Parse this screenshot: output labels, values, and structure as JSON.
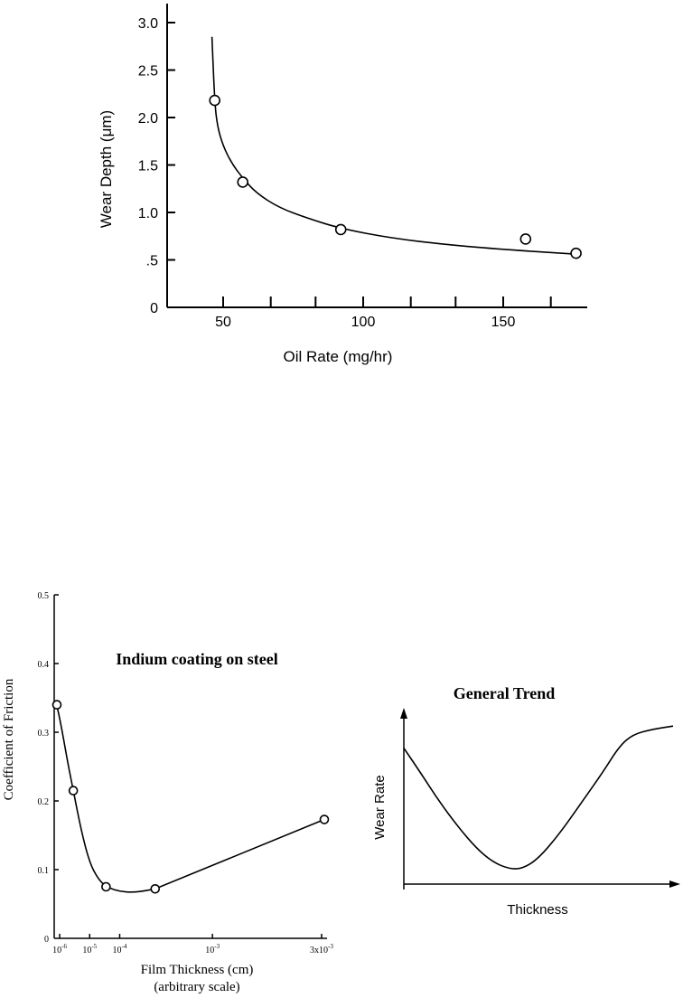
{
  "chart_data": [
    {
      "type": "scatter",
      "xlabel": "Oil Rate (mg/hr)",
      "ylabel": "Wear Depth (μm)",
      "xlim": [
        30,
        180
      ],
      "ylim": [
        0,
        3.2
      ],
      "x_ticks": [
        50,
        100,
        150
      ],
      "x_tick_labels": [
        "50",
        "100",
        "150"
      ],
      "x_minor_ticks": [
        67,
        83,
        117,
        133,
        167
      ],
      "y_ticks": [
        0,
        0.5,
        1.0,
        1.5,
        2.0,
        2.5,
        3.0
      ],
      "y_tick_labels": [
        "0",
        ".5",
        "1.0",
        "1.5",
        "2.0",
        "2.5",
        "3.0"
      ],
      "grid": false,
      "series": [
        {
          "points": [
            {
              "x": 47,
              "y": 2.18
            },
            {
              "x": 57,
              "y": 1.32
            },
            {
              "x": 92,
              "y": 0.82
            },
            {
              "x": 158,
              "y": 0.72
            },
            {
              "x": 176,
              "y": 0.57
            }
          ],
          "fit_curve": [
            [
              46,
              2.85
            ],
            [
              47,
              2.15
            ],
            [
              48,
              1.9
            ],
            [
              50,
              1.7
            ],
            [
              53,
              1.52
            ],
            [
              57,
              1.36
            ],
            [
              62,
              1.2
            ],
            [
              70,
              1.05
            ],
            [
              80,
              0.94
            ],
            [
              92,
              0.83
            ],
            [
              110,
              0.73
            ],
            [
              130,
              0.66
            ],
            [
              150,
              0.61
            ],
            [
              176,
              0.56
            ]
          ]
        }
      ]
    },
    {
      "type": "line",
      "title": "Indium coating on steel",
      "xlabel": "Film Thickness (cm)",
      "xlabel_note": "(arbitrary scale)",
      "ylabel": "Coefficient of Friction",
      "xlim": [
        0,
        10
      ],
      "ylim": [
        0,
        0.5
      ],
      "x_ticks": [
        0.2,
        1.3,
        2.4,
        5.8,
        9.8
      ],
      "x_tick_labels": [
        {
          "base": "10",
          "exp": "-6"
        },
        {
          "base": "10",
          "exp": "-5"
        },
        {
          "base": "10",
          "exp": "-4"
        },
        {
          "base": "10",
          "exp": "-3"
        },
        {
          "base": "3x10",
          "exp": "-3"
        }
      ],
      "y_ticks": [
        0,
        0.1,
        0.2,
        0.3,
        0.4,
        0.5
      ],
      "y_tick_labels": [
        "0",
        "0.1",
        "0.2",
        "0.3",
        "0.4",
        "0.5"
      ],
      "grid": false,
      "series": [
        {
          "points": [
            {
              "x": 0.1,
              "y": 0.34
            },
            {
              "x": 0.7,
              "y": 0.215
            },
            {
              "x": 1.9,
              "y": 0.075
            },
            {
              "x": 3.7,
              "y": 0.072
            },
            {
              "x": 9.9,
              "y": 0.173
            }
          ],
          "fit_curve": [
            [
              0.0,
              0.345
            ],
            [
              0.1,
              0.34
            ],
            [
              0.3,
              0.3
            ],
            [
              0.5,
              0.255
            ],
            [
              0.7,
              0.215
            ],
            [
              1.0,
              0.155
            ],
            [
              1.3,
              0.11
            ],
            [
              1.6,
              0.087
            ],
            [
              1.9,
              0.075
            ],
            [
              2.4,
              0.068
            ],
            [
              2.9,
              0.067
            ],
            [
              3.3,
              0.069
            ],
            [
              3.7,
              0.072
            ],
            [
              9.9,
              0.173
            ]
          ]
        }
      ]
    },
    {
      "type": "line",
      "title": "General Trend",
      "xlabel": "Thickness",
      "ylabel": "Wear Rate",
      "xlim": [
        0,
        10
      ],
      "ylim": [
        0,
        10
      ],
      "grid": false,
      "series": [
        {
          "values_qualitative": [
            [
              0.0,
              8.0
            ],
            [
              0.6,
              6.6
            ],
            [
              1.3,
              4.9
            ],
            [
              2.0,
              3.4
            ],
            [
              2.7,
              2.1
            ],
            [
              3.3,
              1.3
            ],
            [
              3.9,
              0.9
            ],
            [
              4.4,
              0.9
            ],
            [
              5.0,
              1.5
            ],
            [
              5.8,
              3.0
            ],
            [
              6.6,
              4.8
            ],
            [
              7.4,
              6.6
            ],
            [
              8.0,
              8.1
            ],
            [
              8.5,
              8.8
            ],
            [
              9.2,
              9.1
            ],
            [
              10.0,
              9.3
            ]
          ]
        }
      ]
    }
  ]
}
